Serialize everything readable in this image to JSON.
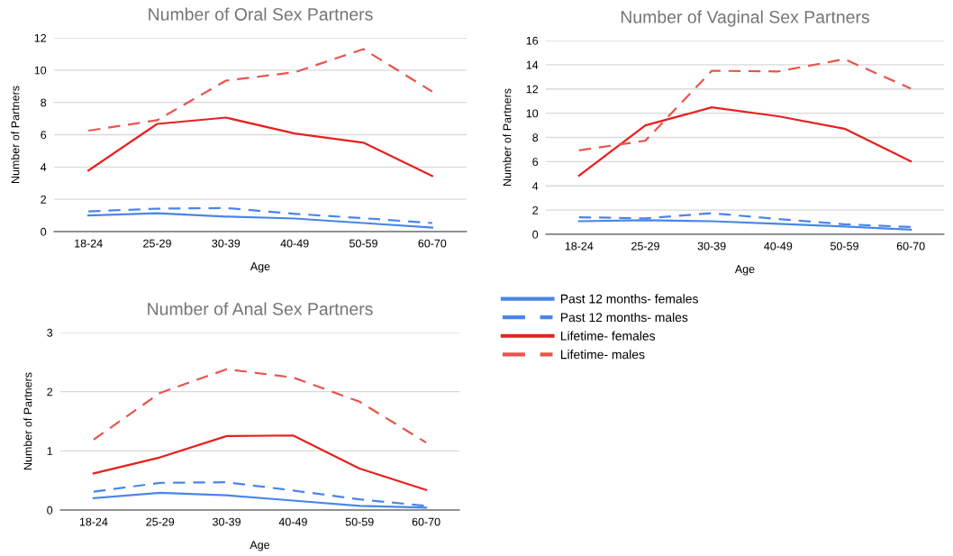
{
  "chart_data": [
    {
      "type": "line",
      "title": "Number of Oral Sex Partners",
      "xlabel": "Age",
      "ylabel": "Number of Partners",
      "categories": [
        "18-24",
        "25-29",
        "30-39",
        "40-49",
        "50-59",
        "60-70"
      ],
      "ylim": [
        0,
        12
      ],
      "yticks": [
        0,
        2,
        4,
        6,
        8,
        10,
        12
      ],
      "grid": "y",
      "series": [
        {
          "color": "#4a86e8",
          "line_style": "solid",
          "values": [
            1.0,
            1.14,
            0.93,
            0.81,
            0.53,
            0.25
          ]
        },
        {
          "color": "#4a86e8",
          "line_style": "dashed",
          "values": [
            1.25,
            1.42,
            1.46,
            1.1,
            0.83,
            0.53
          ]
        },
        {
          "color": "#e6211e",
          "line_style": "solid",
          "values": [
            3.79,
            6.67,
            7.06,
            6.08,
            5.51,
            3.45
          ]
        },
        {
          "color": "#e8554b",
          "line_style": "dashed",
          "values": [
            6.25,
            6.9,
            9.35,
            9.87,
            11.3,
            8.67
          ]
        }
      ]
    },
    {
      "type": "line",
      "title": "Number of Vaginal Sex Partners",
      "xlabel": "Age",
      "ylabel": "Number of Partners",
      "categories": [
        "18-24",
        "25-29",
        "30-39",
        "40-49",
        "50-59",
        "60-70"
      ],
      "ylim": [
        0,
        16
      ],
      "yticks": [
        0,
        2,
        4,
        6,
        8,
        10,
        12,
        14,
        16
      ],
      "grid": "y",
      "series": [
        {
          "color": "#4a86e8",
          "line_style": "solid",
          "values": [
            1.08,
            1.16,
            1.08,
            0.86,
            0.65,
            0.38
          ]
        },
        {
          "color": "#4a86e8",
          "line_style": "dashed",
          "values": [
            1.41,
            1.31,
            1.74,
            1.26,
            0.83,
            0.6
          ]
        },
        {
          "color": "#e6211e",
          "line_style": "solid",
          "values": [
            4.84,
            9.0,
            10.48,
            9.75,
            8.72,
            6.02
          ]
        },
        {
          "color": "#e8554b",
          "line_style": "dashed",
          "values": [
            6.93,
            7.73,
            13.5,
            13.45,
            14.46,
            12.04
          ]
        }
      ]
    },
    {
      "type": "line",
      "title": "Number of Anal Sex Partners",
      "xlabel": "Age",
      "ylabel": "Number of Partners",
      "categories": [
        "18-24",
        "25-29",
        "30-39",
        "40-49",
        "50-59",
        "60-70"
      ],
      "ylim": [
        0,
        3
      ],
      "yticks": [
        0,
        1,
        2,
        3
      ],
      "grid": "y",
      "legend": "right",
      "series": [
        {
          "name": "Past 12 months- females",
          "color": "#4a86e8",
          "line_style": "solid",
          "values": [
            0.2,
            0.29,
            0.25,
            0.16,
            0.07,
            0.04
          ]
        },
        {
          "name": "Past 12 months- males",
          "color": "#4a86e8",
          "line_style": "dashed",
          "values": [
            0.31,
            0.46,
            0.47,
            0.33,
            0.18,
            0.07
          ]
        },
        {
          "name": "Lifetime- females",
          "color": "#e6211e",
          "line_style": "solid",
          "values": [
            0.62,
            0.89,
            1.25,
            1.26,
            0.7,
            0.34
          ]
        },
        {
          "name": "Lifetime- males",
          "color": "#e8554b",
          "line_style": "dashed",
          "values": [
            1.19,
            1.98,
            2.38,
            2.24,
            1.83,
            1.14
          ]
        }
      ]
    }
  ]
}
